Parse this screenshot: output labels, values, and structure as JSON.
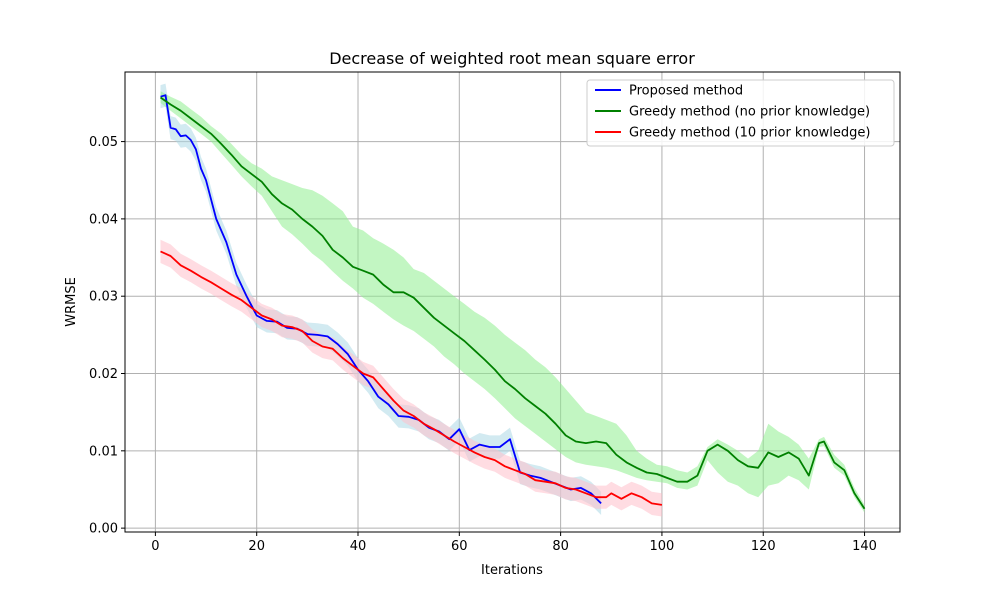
{
  "chart_data": {
    "type": "line",
    "title": "Decrease of weighted root mean square error",
    "xlabel": "Iterations",
    "ylabel": "WRMSE",
    "xlim": [
      -6,
      147
    ],
    "ylim": [
      -0.0005,
      0.059
    ],
    "xticks": [
      0,
      20,
      40,
      60,
      80,
      100,
      120,
      140
    ],
    "yticks": [
      0.0,
      0.01,
      0.02,
      0.03,
      0.04,
      0.05
    ],
    "ytick_labels": [
      "0.00",
      "0.01",
      "0.02",
      "0.03",
      "0.04",
      "0.05"
    ],
    "grid": true,
    "legend_position": "top-right",
    "series": [
      {
        "name": "Proposed method",
        "color": "#0000ff",
        "band_color": "#add8e6",
        "x": [
          1,
          2,
          3,
          4,
          5,
          6,
          7,
          8,
          9,
          10,
          12,
          14,
          16,
          18,
          20,
          22,
          24,
          26,
          28,
          30,
          32,
          34,
          36,
          38,
          40,
          42,
          44,
          46,
          48,
          50,
          52,
          54,
          56,
          58,
          60,
          62,
          64,
          66,
          68,
          70,
          72,
          74,
          76,
          78,
          80,
          82,
          84,
          86,
          88
        ],
        "y": [
          0.0558,
          0.056,
          0.0518,
          0.0516,
          0.0507,
          0.0508,
          0.0502,
          0.049,
          0.0465,
          0.045,
          0.04,
          0.037,
          0.0328,
          0.03,
          0.0275,
          0.0268,
          0.0267,
          0.0259,
          0.0258,
          0.0251,
          0.025,
          0.0248,
          0.0238,
          0.0225,
          0.0205,
          0.019,
          0.017,
          0.016,
          0.0145,
          0.0144,
          0.014,
          0.013,
          0.0125,
          0.0115,
          0.0128,
          0.0101,
          0.0108,
          0.0105,
          0.0105,
          0.0115,
          0.0072,
          0.0068,
          0.0065,
          0.006,
          0.0055,
          0.005,
          0.0052,
          0.0045,
          0.0032
        ],
        "band": 0.0015
      },
      {
        "name": "Greedy method (no prior knowledge)",
        "color": "#008000",
        "band_color": "#90ee90",
        "x": [
          1,
          3,
          5,
          7,
          9,
          11,
          13,
          15,
          17,
          19,
          21,
          23,
          25,
          27,
          29,
          31,
          33,
          35,
          37,
          39,
          41,
          43,
          45,
          47,
          49,
          51,
          53,
          55,
          57,
          59,
          61,
          63,
          65,
          67,
          69,
          71,
          73,
          75,
          77,
          79,
          81,
          83,
          85,
          87,
          89,
          91,
          93,
          95,
          97,
          99,
          101,
          103,
          105,
          107,
          109,
          111,
          113,
          115,
          117,
          119,
          121,
          123,
          125,
          127,
          129,
          131,
          132,
          134,
          136,
          138,
          140
        ],
        "y": [
          0.0557,
          0.0548,
          0.054,
          0.053,
          0.052,
          0.051,
          0.0497,
          0.0483,
          0.0468,
          0.0458,
          0.0448,
          0.0432,
          0.042,
          0.0412,
          0.04,
          0.039,
          0.0378,
          0.036,
          0.035,
          0.0338,
          0.0333,
          0.0328,
          0.0315,
          0.0305,
          0.0305,
          0.0298,
          0.0285,
          0.0272,
          0.0262,
          0.0252,
          0.0242,
          0.023,
          0.0218,
          0.0205,
          0.019,
          0.018,
          0.0168,
          0.0158,
          0.0148,
          0.0135,
          0.012,
          0.0112,
          0.011,
          0.0112,
          0.011,
          0.0095,
          0.0085,
          0.0078,
          0.0072,
          0.007,
          0.0065,
          0.006,
          0.006,
          0.0068,
          0.01,
          0.0108,
          0.01,
          0.0088,
          0.008,
          0.0078,
          0.0098,
          0.0092,
          0.0098,
          0.009,
          0.0068,
          0.011,
          0.0112,
          0.0085,
          0.0075,
          0.0045,
          0.0025
        ],
        "band_upper": [
          0.0565,
          0.0558,
          0.0552,
          0.0542,
          0.0532,
          0.052,
          0.051,
          0.0497,
          0.0483,
          0.0472,
          0.0465,
          0.0455,
          0.045,
          0.0445,
          0.044,
          0.0437,
          0.043,
          0.042,
          0.041,
          0.039,
          0.0385,
          0.0375,
          0.0368,
          0.036,
          0.035,
          0.0335,
          0.033,
          0.032,
          0.031,
          0.03,
          0.029,
          0.028,
          0.0272,
          0.0262,
          0.025,
          0.024,
          0.023,
          0.0218,
          0.0208,
          0.0195,
          0.018,
          0.0165,
          0.015,
          0.0145,
          0.014,
          0.0135,
          0.012,
          0.01,
          0.009,
          0.0082,
          0.008,
          0.0075,
          0.0072,
          0.008,
          0.0105,
          0.0115,
          0.0108,
          0.01,
          0.009,
          0.01,
          0.0135,
          0.0125,
          0.0118,
          0.0108,
          0.009,
          0.0115,
          0.0118,
          0.0095,
          0.0082,
          0.0052,
          0.003
        ],
        "band_lower": [
          0.055,
          0.054,
          0.053,
          0.052,
          0.051,
          0.05,
          0.0485,
          0.047,
          0.0455,
          0.0442,
          0.043,
          0.041,
          0.039,
          0.038,
          0.0368,
          0.0355,
          0.0345,
          0.0332,
          0.032,
          0.031,
          0.0298,
          0.029,
          0.028,
          0.027,
          0.0262,
          0.0255,
          0.0245,
          0.0235,
          0.0222,
          0.0212,
          0.02,
          0.019,
          0.018,
          0.0168,
          0.0155,
          0.0142,
          0.0132,
          0.0122,
          0.0112,
          0.0102,
          0.0092,
          0.0085,
          0.0082,
          0.008,
          0.0078,
          0.0075,
          0.007,
          0.0065,
          0.0062,
          0.006,
          0.0058,
          0.0052,
          0.005,
          0.0055,
          0.0088,
          0.0072,
          0.006,
          0.0055,
          0.0045,
          0.004,
          0.0055,
          0.0058,
          0.0068,
          0.0062,
          0.005,
          0.0105,
          0.0106,
          0.0078,
          0.0068,
          0.004,
          0.002
        ]
      },
      {
        "name": "Greedy method (10 prior knowledge)",
        "color": "#ff0000",
        "band_color": "#ffc0cb",
        "x": [
          1,
          3,
          5,
          7,
          9,
          11,
          13,
          15,
          17,
          19,
          21,
          23,
          25,
          27,
          29,
          31,
          33,
          35,
          37,
          39,
          41,
          43,
          45,
          47,
          49,
          51,
          53,
          55,
          57,
          59,
          61,
          63,
          65,
          67,
          69,
          71,
          73,
          75,
          77,
          79,
          81,
          83,
          85,
          87,
          89,
          90,
          92,
          94,
          96,
          98,
          100
        ],
        "y": [
          0.0358,
          0.0352,
          0.034,
          0.0333,
          0.0325,
          0.0318,
          0.031,
          0.0302,
          0.0295,
          0.0285,
          0.0275,
          0.027,
          0.0262,
          0.026,
          0.0255,
          0.0242,
          0.0235,
          0.0232,
          0.022,
          0.021,
          0.02,
          0.0195,
          0.018,
          0.0165,
          0.0152,
          0.0145,
          0.0135,
          0.0128,
          0.012,
          0.0112,
          0.0105,
          0.0098,
          0.0092,
          0.0088,
          0.008,
          0.0075,
          0.007,
          0.0062,
          0.006,
          0.0058,
          0.0052,
          0.005,
          0.0045,
          0.004,
          0.004,
          0.0045,
          0.0038,
          0.0045,
          0.004,
          0.0032,
          0.003
        ],
        "band": 0.0015
      }
    ]
  }
}
